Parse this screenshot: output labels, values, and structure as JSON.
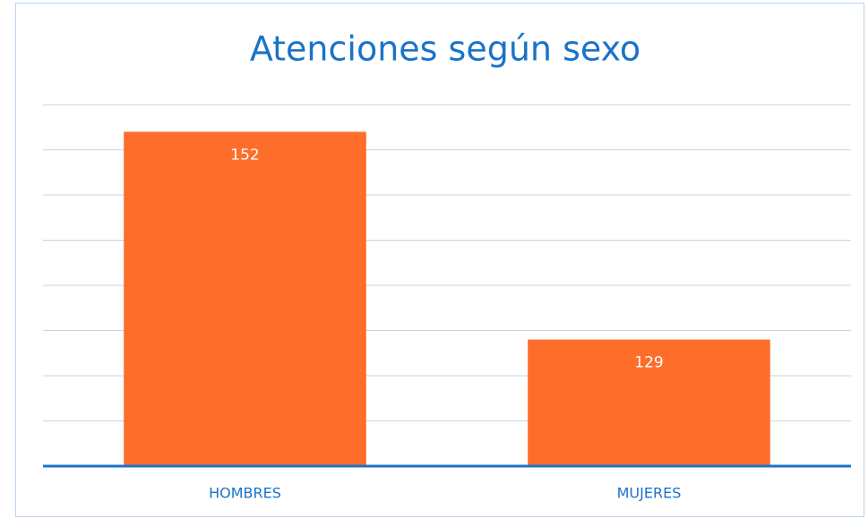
{
  "chart_data": {
    "type": "bar",
    "title": "Atenciones según sexo",
    "categories": [
      "HOMBRES",
      "MUJERES"
    ],
    "values": [
      152,
      129
    ],
    "color": "#ff6d2a",
    "ylim": [
      115,
      155
    ],
    "yticks": [
      115,
      120,
      125,
      130,
      135,
      140,
      145,
      150,
      155
    ],
    "grid": true
  }
}
